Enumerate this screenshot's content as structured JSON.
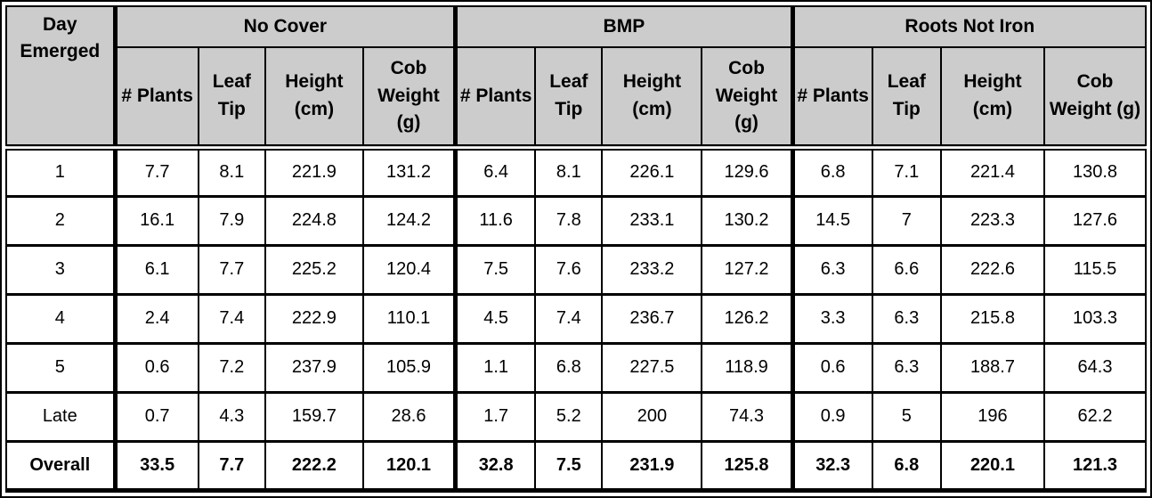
{
  "colors": {
    "header_bg": "#cccccc",
    "border": "#000000",
    "body_bg": "#ffffff",
    "text": "#000000"
  },
  "table": {
    "day_header": "Day Emerged",
    "groups": [
      {
        "label": "No Cover",
        "columns": [
          "# Plants",
          "Leaf Tip",
          "Height (cm)",
          "Cob Weight (g)"
        ]
      },
      {
        "label": "BMP",
        "columns": [
          "# Plants",
          "Leaf Tip",
          "Height (cm)",
          "Cob Weight (g)"
        ]
      },
      {
        "label": "Roots Not Iron",
        "columns": [
          "# Plants",
          "Leaf Tip",
          "Height (cm)",
          "Cob Weight (g)"
        ]
      }
    ],
    "rows": [
      {
        "day": "1",
        "bold": false,
        "values": [
          "7.7",
          "8.1",
          "221.9",
          "131.2",
          "6.4",
          "8.1",
          "226.1",
          "129.6",
          "6.8",
          "7.1",
          "221.4",
          "130.8"
        ]
      },
      {
        "day": "2",
        "bold": false,
        "values": [
          "16.1",
          "7.9",
          "224.8",
          "124.2",
          "11.6",
          "7.8",
          "233.1",
          "130.2",
          "14.5",
          "7",
          "223.3",
          "127.6"
        ]
      },
      {
        "day": "3",
        "bold": false,
        "values": [
          "6.1",
          "7.7",
          "225.2",
          "120.4",
          "7.5",
          "7.6",
          "233.2",
          "127.2",
          "6.3",
          "6.6",
          "222.6",
          "115.5"
        ]
      },
      {
        "day": "4",
        "bold": false,
        "values": [
          "2.4",
          "7.4",
          "222.9",
          "110.1",
          "4.5",
          "7.4",
          "236.7",
          "126.2",
          "3.3",
          "6.3",
          "215.8",
          "103.3"
        ]
      },
      {
        "day": "5",
        "bold": false,
        "values": [
          "0.6",
          "7.2",
          "237.9",
          "105.9",
          "1.1",
          "6.8",
          "227.5",
          "118.9",
          "0.6",
          "6.3",
          "188.7",
          "64.3"
        ]
      },
      {
        "day": "Late",
        "bold": false,
        "values": [
          "0.7",
          "4.3",
          "159.7",
          "28.6",
          "1.7",
          "5.2",
          "200",
          "74.3",
          "0.9",
          "5",
          "196",
          "62.2"
        ]
      },
      {
        "day": "Overall",
        "bold": true,
        "values": [
          "33.5",
          "7.7",
          "222.2",
          "120.1",
          "32.8",
          "7.5",
          "231.9",
          "125.8",
          "32.3",
          "6.8",
          "220.1",
          "121.3"
        ]
      }
    ]
  },
  "chart_data": {
    "type": "table",
    "title": "",
    "row_header": "Day Emerged",
    "column_groups": [
      "No Cover",
      "BMP",
      "Roots Not Iron"
    ],
    "metrics": [
      "# Plants",
      "Leaf Tip",
      "Height (cm)",
      "Cob Weight (g)"
    ],
    "rows": [
      "1",
      "2",
      "3",
      "4",
      "5",
      "Late",
      "Overall"
    ],
    "no_cover": [
      [
        7.7,
        8.1,
        221.9,
        131.2
      ],
      [
        16.1,
        7.9,
        224.8,
        124.2
      ],
      [
        6.1,
        7.7,
        225.2,
        120.4
      ],
      [
        2.4,
        7.4,
        222.9,
        110.1
      ],
      [
        0.6,
        7.2,
        237.9,
        105.9
      ],
      [
        0.7,
        4.3,
        159.7,
        28.6
      ],
      [
        33.5,
        7.7,
        222.2,
        120.1
      ]
    ],
    "bmp": [
      [
        6.4,
        8.1,
        226.1,
        129.6
      ],
      [
        11.6,
        7.8,
        233.1,
        130.2
      ],
      [
        7.5,
        7.6,
        233.2,
        127.2
      ],
      [
        4.5,
        7.4,
        236.7,
        126.2
      ],
      [
        1.1,
        6.8,
        227.5,
        118.9
      ],
      [
        1.7,
        5.2,
        200,
        74.3
      ],
      [
        32.8,
        7.5,
        231.9,
        125.8
      ]
    ],
    "roots_not_iron": [
      [
        6.8,
        7.1,
        221.4,
        130.8
      ],
      [
        14.5,
        7,
        223.3,
        127.6
      ],
      [
        6.3,
        6.6,
        222.6,
        115.5
      ],
      [
        3.3,
        6.3,
        215.8,
        103.3
      ],
      [
        0.6,
        6.3,
        188.7,
        64.3
      ],
      [
        0.9,
        5,
        196,
        62.2
      ],
      [
        32.3,
        6.8,
        220.1,
        121.3
      ]
    ]
  }
}
